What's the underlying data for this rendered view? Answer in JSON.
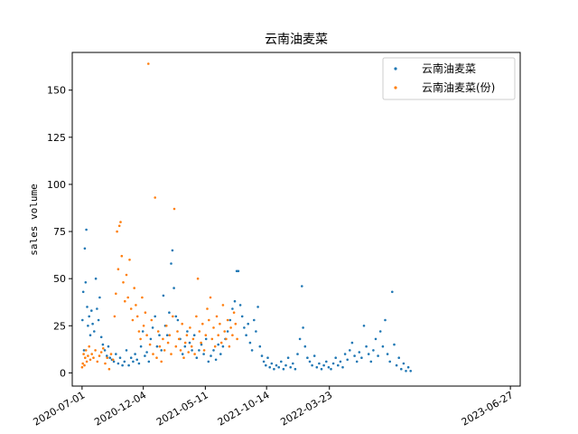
{
  "chart_data": {
    "type": "scatter",
    "title": "云南油麦菜",
    "xlabel": "",
    "ylabel": "sales volume",
    "xlim": [
      "2020-06-06",
      "2023-07-22"
    ],
    "ylim": [
      -7,
      170
    ],
    "x_ticks": [
      "2020-07-01",
      "2020-12-04",
      "2021-05-11",
      "2021-10-14",
      "2022-03-23",
      "2023-06-27"
    ],
    "y_ticks": [
      0,
      25,
      50,
      75,
      100,
      125,
      150
    ],
    "legend": {
      "placement": "top-right"
    },
    "grid": false,
    "series": [
      {
        "name": "云南油麦菜",
        "color": "#1f77b4",
        "points": [
          [
            "2020-07-02",
            28
          ],
          [
            "2020-07-04",
            43
          ],
          [
            "2020-07-06",
            12
          ],
          [
            "2020-07-08",
            66
          ],
          [
            "2020-07-10",
            48
          ],
          [
            "2020-07-12",
            76
          ],
          [
            "2020-07-14",
            35
          ],
          [
            "2020-07-16",
            25
          ],
          [
            "2020-07-19",
            30
          ],
          [
            "2020-07-22",
            20
          ],
          [
            "2020-07-25",
            33
          ],
          [
            "2020-07-28",
            26
          ],
          [
            "2020-08-01",
            22
          ],
          [
            "2020-08-05",
            50
          ],
          [
            "2020-08-08",
            34
          ],
          [
            "2020-08-12",
            28
          ],
          [
            "2020-08-15",
            40
          ],
          [
            "2020-08-19",
            19
          ],
          [
            "2020-08-23",
            15
          ],
          [
            "2020-08-28",
            12
          ],
          [
            "2020-09-02",
            9
          ],
          [
            "2020-09-06",
            14
          ],
          [
            "2020-09-10",
            8
          ],
          [
            "2020-09-15",
            7
          ],
          [
            "2020-09-20",
            6
          ],
          [
            "2020-09-25",
            10
          ],
          [
            "2020-10-01",
            5
          ],
          [
            "2020-10-06",
            8
          ],
          [
            "2020-10-12",
            4
          ],
          [
            "2020-10-17",
            6
          ],
          [
            "2020-10-22",
            12
          ],
          [
            "2020-10-28",
            4
          ],
          [
            "2020-11-03",
            8
          ],
          [
            "2020-11-08",
            6
          ],
          [
            "2020-11-13",
            10
          ],
          [
            "2020-11-18",
            7
          ],
          [
            "2020-11-23",
            5
          ],
          [
            "2020-11-28",
            14
          ],
          [
            "2020-12-03",
            22
          ],
          [
            "2020-12-08",
            9
          ],
          [
            "2020-12-13",
            11
          ],
          [
            "2020-12-18",
            6
          ],
          [
            "2020-12-23",
            18
          ],
          [
            "2020-12-28",
            24
          ],
          [
            "2021-01-03",
            30
          ],
          [
            "2021-01-08",
            14
          ],
          [
            "2021-01-14",
            20
          ],
          [
            "2021-01-19",
            12
          ],
          [
            "2021-01-24",
            41
          ],
          [
            "2021-01-29",
            25
          ],
          [
            "2021-02-03",
            20
          ],
          [
            "2021-02-08",
            32
          ],
          [
            "2021-02-13",
            58
          ],
          [
            "2021-02-16",
            65
          ],
          [
            "2021-02-20",
            45
          ],
          [
            "2021-02-25",
            30
          ],
          [
            "2021-03-02",
            28
          ],
          [
            "2021-03-08",
            18
          ],
          [
            "2021-03-14",
            10
          ],
          [
            "2021-03-20",
            14
          ],
          [
            "2021-03-26",
            22
          ],
          [
            "2021-04-01",
            16
          ],
          [
            "2021-04-07",
            12
          ],
          [
            "2021-04-13",
            20
          ],
          [
            "2021-04-19",
            8
          ],
          [
            "2021-04-25",
            12
          ],
          [
            "2021-05-01",
            15
          ],
          [
            "2021-05-07",
            10
          ],
          [
            "2021-05-13",
            18
          ],
          [
            "2021-05-19",
            6
          ],
          [
            "2021-05-25",
            9
          ],
          [
            "2021-06-01",
            12
          ],
          [
            "2021-06-07",
            7
          ],
          [
            "2021-06-13",
            15
          ],
          [
            "2021-06-19",
            10
          ],
          [
            "2021-06-25",
            14
          ],
          [
            "2021-07-01",
            18
          ],
          [
            "2021-07-07",
            22
          ],
          [
            "2021-07-13",
            28
          ],
          [
            "2021-07-19",
            34
          ],
          [
            "2021-07-25",
            38
          ],
          [
            "2021-07-30",
            54
          ],
          [
            "2021-08-03",
            54
          ],
          [
            "2021-08-08",
            36
          ],
          [
            "2021-08-13",
            30
          ],
          [
            "2021-08-18",
            24
          ],
          [
            "2021-08-23",
            20
          ],
          [
            "2021-08-28",
            26
          ],
          [
            "2021-09-02",
            16
          ],
          [
            "2021-09-07",
            12
          ],
          [
            "2021-09-12",
            28
          ],
          [
            "2021-09-17",
            22
          ],
          [
            "2021-09-22",
            35
          ],
          [
            "2021-09-27",
            14
          ],
          [
            "2021-10-02",
            9
          ],
          [
            "2021-10-07",
            6
          ],
          [
            "2021-10-12",
            4
          ],
          [
            "2021-10-17",
            8
          ],
          [
            "2021-10-22",
            3
          ],
          [
            "2021-10-27",
            5
          ],
          [
            "2021-11-02",
            2
          ],
          [
            "2021-11-08",
            4
          ],
          [
            "2021-11-14",
            3
          ],
          [
            "2021-11-20",
            6
          ],
          [
            "2021-11-26",
            2
          ],
          [
            "2021-12-02",
            4
          ],
          [
            "2021-12-08",
            8
          ],
          [
            "2021-12-14",
            3
          ],
          [
            "2021-12-20",
            5
          ],
          [
            "2021-12-26",
            2
          ],
          [
            "2022-01-01",
            10
          ],
          [
            "2022-01-07",
            18
          ],
          [
            "2022-01-12",
            46
          ],
          [
            "2022-01-15",
            24
          ],
          [
            "2022-01-20",
            14
          ],
          [
            "2022-01-26",
            8
          ],
          [
            "2022-02-01",
            6
          ],
          [
            "2022-02-07",
            4
          ],
          [
            "2022-02-13",
            9
          ],
          [
            "2022-02-19",
            3
          ],
          [
            "2022-02-25",
            5
          ],
          [
            "2022-03-03",
            2
          ],
          [
            "2022-03-09",
            4
          ],
          [
            "2022-03-15",
            6
          ],
          [
            "2022-03-21",
            3
          ],
          [
            "2022-03-27",
            2
          ],
          [
            "2022-04-02",
            5
          ],
          [
            "2022-04-08",
            8
          ],
          [
            "2022-04-14",
            4
          ],
          [
            "2022-04-20",
            6
          ],
          [
            "2022-04-26",
            3
          ],
          [
            "2022-05-02",
            10
          ],
          [
            "2022-05-08",
            7
          ],
          [
            "2022-05-14",
            12
          ],
          [
            "2022-05-20",
            16
          ],
          [
            "2022-05-26",
            9
          ],
          [
            "2022-06-01",
            6
          ],
          [
            "2022-06-07",
            11
          ],
          [
            "2022-06-13",
            8
          ],
          [
            "2022-06-19",
            25
          ],
          [
            "2022-06-25",
            14
          ],
          [
            "2022-07-01",
            10
          ],
          [
            "2022-07-07",
            6
          ],
          [
            "2022-07-13",
            12
          ],
          [
            "2022-07-19",
            18
          ],
          [
            "2022-07-25",
            9
          ],
          [
            "2022-07-31",
            22
          ],
          [
            "2022-08-06",
            14
          ],
          [
            "2022-08-12",
            28
          ],
          [
            "2022-08-18",
            10
          ],
          [
            "2022-08-24",
            6
          ],
          [
            "2022-08-30",
            43
          ],
          [
            "2022-09-04",
            15
          ],
          [
            "2022-09-10",
            4
          ],
          [
            "2022-09-16",
            8
          ],
          [
            "2022-09-22",
            2
          ],
          [
            "2022-09-28",
            5
          ],
          [
            "2022-10-04",
            1
          ],
          [
            "2022-10-10",
            3
          ],
          [
            "2022-10-16",
            1
          ]
        ]
      },
      {
        "name": "云南油麦菜(份)",
        "color": "#ff7f0e",
        "points": [
          [
            "2020-07-01",
            3
          ],
          [
            "2020-07-03",
            5
          ],
          [
            "2020-07-05",
            10
          ],
          [
            "2020-07-07",
            4
          ],
          [
            "2020-07-09",
            8
          ],
          [
            "2020-07-11",
            12
          ],
          [
            "2020-07-13",
            6
          ],
          [
            "2020-07-16",
            9
          ],
          [
            "2020-07-19",
            14
          ],
          [
            "2020-07-22",
            7
          ],
          [
            "2020-07-26",
            10
          ],
          [
            "2020-07-30",
            8
          ],
          [
            "2020-08-04",
            12
          ],
          [
            "2020-08-09",
            6
          ],
          [
            "2020-08-14",
            9
          ],
          [
            "2020-08-19",
            11
          ],
          [
            "2020-08-24",
            13
          ],
          [
            "2020-08-29",
            5
          ],
          [
            "2020-09-03",
            8
          ],
          [
            "2020-09-08",
            2
          ],
          [
            "2020-09-13",
            10
          ],
          [
            "2020-09-18",
            7
          ],
          [
            "2020-09-22",
            30
          ],
          [
            "2020-09-25",
            42
          ],
          [
            "2020-09-28",
            75
          ],
          [
            "2020-10-01",
            55
          ],
          [
            "2020-10-04",
            78
          ],
          [
            "2020-10-07",
            80
          ],
          [
            "2020-10-10",
            62
          ],
          [
            "2020-10-14",
            48
          ],
          [
            "2020-10-18",
            38
          ],
          [
            "2020-10-22",
            52
          ],
          [
            "2020-10-26",
            40
          ],
          [
            "2020-10-30",
            60
          ],
          [
            "2020-11-03",
            34
          ],
          [
            "2020-11-07",
            28
          ],
          [
            "2020-11-11",
            45
          ],
          [
            "2020-11-15",
            36
          ],
          [
            "2020-11-19",
            30
          ],
          [
            "2020-11-23",
            22
          ],
          [
            "2020-11-27",
            18
          ],
          [
            "2020-12-01",
            40
          ],
          [
            "2020-12-05",
            25
          ],
          [
            "2020-12-09",
            32
          ],
          [
            "2020-12-13",
            20
          ],
          [
            "2020-12-17",
            164
          ],
          [
            "2020-12-21",
            15
          ],
          [
            "2020-12-25",
            28
          ],
          [
            "2020-12-29",
            10
          ],
          [
            "2021-01-03",
            93
          ],
          [
            "2021-01-07",
            8
          ],
          [
            "2021-01-11",
            22
          ],
          [
            "2021-01-15",
            14
          ],
          [
            "2021-01-19",
            6
          ],
          [
            "2021-01-23",
            18
          ],
          [
            "2021-01-27",
            12
          ],
          [
            "2021-02-01",
            25
          ],
          [
            "2021-02-05",
            16
          ],
          [
            "2021-02-09",
            20
          ],
          [
            "2021-02-13",
            10
          ],
          [
            "2021-02-17",
            30
          ],
          [
            "2021-02-21",
            87
          ],
          [
            "2021-02-25",
            14
          ],
          [
            "2021-03-01",
            22
          ],
          [
            "2021-03-05",
            18
          ],
          [
            "2021-03-09",
            12
          ],
          [
            "2021-03-13",
            26
          ],
          [
            "2021-03-17",
            8
          ],
          [
            "2021-03-21",
            16
          ],
          [
            "2021-03-25",
            20
          ],
          [
            "2021-03-29",
            11
          ],
          [
            "2021-04-02",
            24
          ],
          [
            "2021-04-06",
            14
          ],
          [
            "2021-04-10",
            18
          ],
          [
            "2021-04-14",
            10
          ],
          [
            "2021-04-18",
            30
          ],
          [
            "2021-04-22",
            50
          ],
          [
            "2021-04-26",
            22
          ],
          [
            "2021-04-30",
            16
          ],
          [
            "2021-05-04",
            26
          ],
          [
            "2021-05-08",
            12
          ],
          [
            "2021-05-12",
            20
          ],
          [
            "2021-05-16",
            34
          ],
          [
            "2021-05-20",
            28
          ],
          [
            "2021-05-24",
            40
          ],
          [
            "2021-05-28",
            18
          ],
          [
            "2021-06-01",
            24
          ],
          [
            "2021-06-05",
            14
          ],
          [
            "2021-06-09",
            30
          ],
          [
            "2021-06-13",
            20
          ],
          [
            "2021-06-17",
            26
          ],
          [
            "2021-06-21",
            16
          ],
          [
            "2021-06-25",
            36
          ],
          [
            "2021-06-29",
            22
          ],
          [
            "2021-07-03",
            18
          ],
          [
            "2021-07-07",
            28
          ],
          [
            "2021-07-11",
            14
          ],
          [
            "2021-07-15",
            24
          ],
          [
            "2021-07-19",
            20
          ],
          [
            "2021-07-23",
            32
          ],
          [
            "2021-07-27",
            26
          ],
          [
            "2021-07-31",
            18
          ]
        ]
      }
    ]
  }
}
